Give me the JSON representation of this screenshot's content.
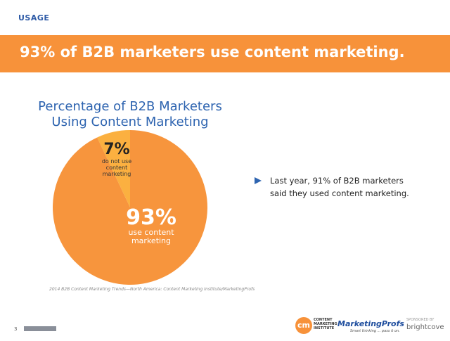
{
  "section": "USAGE",
  "headline": "93% of B2B marketers use content marketing.",
  "chart_data": {
    "type": "pie",
    "title": [
      "Percentage of B2B Marketers",
      "Using Content Marketing"
    ],
    "categories": [
      "do not use content marketing",
      "use content marketing"
    ],
    "values": [
      7,
      93
    ],
    "value_labels": [
      "7%",
      "93%"
    ],
    "colors": [
      "#fbb040",
      "#f7953d"
    ],
    "source": "2014 B2B Content Marketing Trends—North America: Content Marketing Institute/MarketingProfs"
  },
  "bullets": [
    "Last year, 91% of B2B marketers said they used content marketing."
  ],
  "footer": {
    "page_number": "3",
    "cmi_mark": "cm",
    "cmi_name": "CONTENT MARKETING INSTITUTE",
    "mp_name": "MarketingProfs",
    "mp_tagline": "Smart thinking ... pass it on.",
    "sponsor_label": "SPONSORED BY",
    "sponsor": "brightcove"
  }
}
